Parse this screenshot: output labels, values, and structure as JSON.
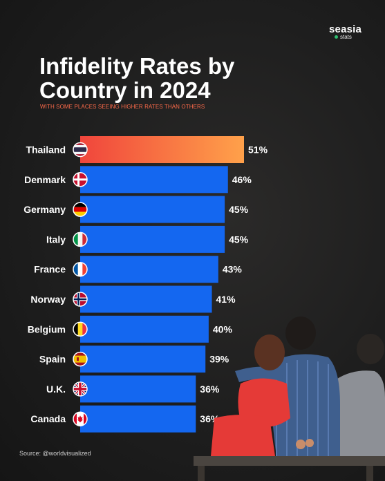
{
  "brand": {
    "name": "seasia",
    "sub": "stats",
    "dot_color": "#2fbf71"
  },
  "title": "Infidelity Rates by Country in 2024",
  "subtitle": "WITH SOME PLACES SEEING HIGHER RATES THAN OTHERS",
  "source": "Source: @worldvisualized",
  "colors": {
    "bar_blue": "#1467f0",
    "bar_top_start": "#f0453c",
    "bar_top_end": "#ffa14a",
    "subtitle": "#ff6b4a"
  },
  "chart_data": {
    "type": "bar",
    "orientation": "horizontal",
    "title": "Infidelity Rates by Country in 2024",
    "categories": [
      "Thailand",
      "Denmark",
      "Germany",
      "Italy",
      "France",
      "Norway",
      "Belgium",
      "Spain",
      "U.K.",
      "Canada"
    ],
    "values": [
      51,
      46,
      45,
      45,
      43,
      41,
      40,
      39,
      36,
      36
    ],
    "value_labels": [
      "51%",
      "46%",
      "45%",
      "45%",
      "43%",
      "41%",
      "40%",
      "39%",
      "36%",
      "36%"
    ],
    "flag_icons": [
      "thailand-flag-icon",
      "denmark-flag-icon",
      "germany-flag-icon",
      "italy-flag-icon",
      "france-flag-icon",
      "norway-flag-icon",
      "belgium-flag-icon",
      "spain-flag-icon",
      "uk-flag-icon",
      "canada-flag-icon"
    ],
    "unit": "%",
    "highlight": "Thailand",
    "grid": false,
    "legend": "none"
  }
}
